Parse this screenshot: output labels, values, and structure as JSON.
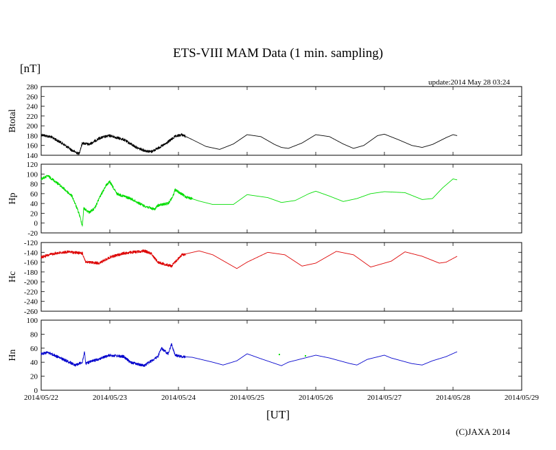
{
  "title": "ETS-VIII MAM Data (1 min. sampling)",
  "unit_label": "[nT]",
  "update_text": "update:2014 May 28 03:24",
  "x_axis_label": "[UT]",
  "copyright": "(C)JAXA 2014",
  "chart_data": [
    {
      "type": "line",
      "name": "Btotal",
      "ylabel": "Btotal",
      "color": "#000000",
      "ylim": [
        140,
        280
      ],
      "ytick_step": 20,
      "yticks": [
        "280",
        "260",
        "240",
        "220",
        "200",
        "180",
        "160",
        "140"
      ],
      "xlim_days": [
        0,
        7
      ],
      "xticks": [
        "2014/05/22",
        "2014/05/23",
        "2014/05/24",
        "2014/05/25",
        "2014/05/26",
        "2014/05/27",
        "2014/05/28",
        "2014/05/29"
      ],
      "x_days": [
        0,
        0.15,
        0.3,
        0.45,
        0.55,
        0.6,
        0.7,
        0.85,
        1.0,
        1.2,
        1.4,
        1.5,
        1.6,
        1.8,
        1.95,
        2.05,
        2.2,
        2.4,
        2.6,
        2.8,
        3.0,
        3.2,
        3.4,
        3.5,
        3.6,
        3.8,
        4.0,
        4.2,
        4.4,
        4.55,
        4.7,
        4.9,
        5.0,
        5.2,
        5.4,
        5.55,
        5.7,
        5.9,
        6.0,
        6.06
      ],
      "y": [
        182,
        177,
        165,
        150,
        143,
        165,
        162,
        175,
        180,
        172,
        155,
        150,
        147,
        162,
        178,
        182,
        172,
        158,
        152,
        163,
        182,
        178,
        162,
        156,
        154,
        165,
        182,
        178,
        163,
        154,
        160,
        180,
        183,
        172,
        160,
        156,
        162,
        176,
        182,
        180
      ],
      "noise_ranges": [
        [
          0,
          2.1,
          4
        ]
      ]
    },
    {
      "type": "line",
      "name": "Hp",
      "ylabel": "Hp",
      "color": "#00dd00",
      "ylim": [
        -20,
        120
      ],
      "ytick_step": 20,
      "yticks": [
        "120",
        "100",
        "80",
        "60",
        "40",
        "20",
        "0",
        "-20"
      ],
      "xlim_days": [
        0,
        7
      ],
      "xticks": [
        "2014/05/22",
        "2014/05/23",
        "2014/05/24",
        "2014/05/25",
        "2014/05/26",
        "2014/05/27",
        "2014/05/28",
        "2014/05/29"
      ],
      "x_days": [
        0,
        0.1,
        0.25,
        0.45,
        0.55,
        0.6,
        0.62,
        0.7,
        0.78,
        0.85,
        0.95,
        1.0,
        1.1,
        1.3,
        1.5,
        1.65,
        1.7,
        1.85,
        1.92,
        1.95,
        2.1,
        2.3,
        2.5,
        2.8,
        3.0,
        3.3,
        3.5,
        3.7,
        3.9,
        4.0,
        4.2,
        4.4,
        4.6,
        4.8,
        5.0,
        5.3,
        5.55,
        5.7,
        5.85,
        6.0,
        6.06
      ],
      "y": [
        90,
        96,
        80,
        55,
        20,
        -5,
        30,
        22,
        30,
        52,
        78,
        84,
        60,
        50,
        35,
        28,
        36,
        40,
        55,
        68,
        54,
        45,
        38,
        38,
        58,
        52,
        42,
        46,
        60,
        65,
        55,
        44,
        50,
        60,
        64,
        62,
        48,
        50,
        72,
        90,
        88
      ],
      "noise_ranges": [
        [
          0,
          2.2,
          4
        ]
      ]
    },
    {
      "type": "line",
      "name": "Hc",
      "ylabel": "Hc",
      "color": "#dd0000",
      "ylim": [
        -260,
        -120
      ],
      "ytick_step": 20,
      "yticks": [
        "-120",
        "-140",
        "-160",
        "-180",
        "-200",
        "-220",
        "-240",
        "-260"
      ],
      "xlim_days": [
        0,
        7
      ],
      "xticks": [
        "2014/05/22",
        "2014/05/23",
        "2014/05/24",
        "2014/05/25",
        "2014/05/26",
        "2014/05/27",
        "2014/05/28",
        "2014/05/29"
      ],
      "x_days": [
        0,
        0.2,
        0.4,
        0.6,
        0.65,
        0.85,
        1.0,
        1.2,
        1.5,
        1.6,
        1.7,
        1.9,
        1.95,
        2.05,
        2.3,
        2.5,
        2.85,
        3.0,
        3.3,
        3.55,
        3.8,
        4.0,
        4.3,
        4.55,
        4.8,
        5.1,
        5.3,
        5.55,
        5.8,
        5.9,
        6.06
      ],
      "y": [
        -150,
        -142,
        -139,
        -142,
        -160,
        -162,
        -150,
        -142,
        -137,
        -142,
        -160,
        -168,
        -160,
        -145,
        -137,
        -145,
        -173,
        -160,
        -140,
        -145,
        -168,
        -162,
        -138,
        -145,
        -170,
        -158,
        -139,
        -148,
        -162,
        -160,
        -148
      ],
      "noise_ranges": [
        [
          0,
          2.1,
          4
        ]
      ]
    },
    {
      "type": "line",
      "name": "Hn",
      "ylabel": "Hn",
      "color": "#0000cc",
      "ylim": [
        0,
        100
      ],
      "ytick_step": 20,
      "yticks": [
        "100",
        "80",
        "60",
        "40",
        "20",
        "0"
      ],
      "xlim_days": [
        0,
        7
      ],
      "xticks": [
        "2014/05/22",
        "2014/05/23",
        "2014/05/24",
        "2014/05/25",
        "2014/05/26",
        "2014/05/27",
        "2014/05/28",
        "2014/05/29"
      ],
      "x_days": [
        0,
        0.1,
        0.3,
        0.5,
        0.6,
        0.63,
        0.65,
        0.7,
        1.0,
        1.2,
        1.3,
        1.5,
        1.7,
        1.75,
        1.85,
        1.9,
        1.95,
        2.05,
        2.2,
        2.5,
        2.65,
        2.85,
        3.0,
        3.2,
        3.5,
        3.6,
        3.8,
        4.0,
        4.2,
        4.5,
        4.6,
        4.75,
        5.0,
        5.1,
        5.4,
        5.55,
        5.7,
        5.9,
        6.06
      ],
      "y": [
        52,
        54,
        45,
        36,
        40,
        55,
        38,
        40,
        50,
        48,
        40,
        35,
        48,
        60,
        52,
        66,
        50,
        48,
        47,
        40,
        36,
        42,
        52,
        45,
        35,
        40,
        45,
        50,
        46,
        38,
        36,
        44,
        50,
        46,
        38,
        36,
        42,
        48,
        55
      ],
      "noise_ranges": [
        [
          0,
          2.1,
          4
        ]
      ],
      "outliers": [
        {
          "x": 3.47,
          "y": 51,
          "color": "#00dd00"
        },
        {
          "x": 3.85,
          "y": 49,
          "color": "#00dd00"
        }
      ]
    }
  ]
}
